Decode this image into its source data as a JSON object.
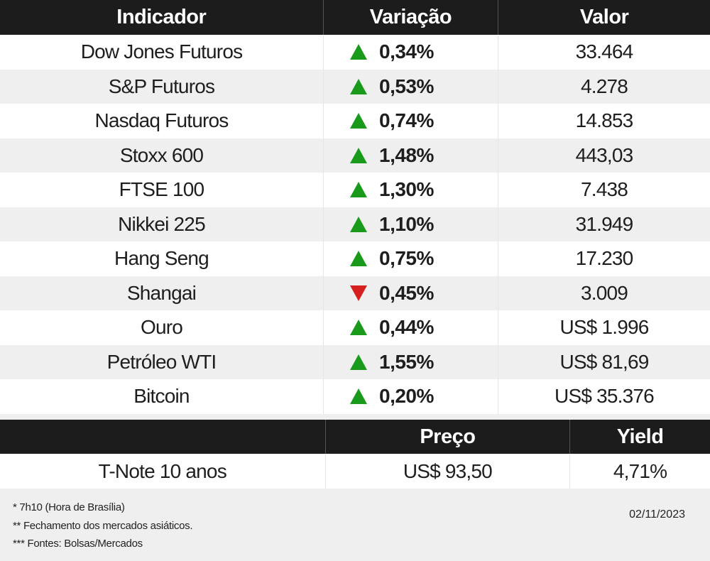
{
  "main_table": {
    "headers": {
      "indicador": "Indicador",
      "variacao": "Variação",
      "valor": "Valor"
    },
    "rows": [
      {
        "indicador": "Dow Jones Futuros",
        "direction": "up",
        "variacao": "0,34%",
        "valor": "33.464"
      },
      {
        "indicador": "S&P Futuros",
        "direction": "up",
        "variacao": "0,53%",
        "valor": "4.278"
      },
      {
        "indicador": "Nasdaq Futuros",
        "direction": "up",
        "variacao": "0,74%",
        "valor": "14.853"
      },
      {
        "indicador": "Stoxx 600",
        "direction": "up",
        "variacao": "1,48%",
        "valor": "443,03"
      },
      {
        "indicador": "FTSE 100",
        "direction": "up",
        "variacao": "1,30%",
        "valor": "7.438"
      },
      {
        "indicador": "Nikkei 225",
        "direction": "up",
        "variacao": "1,10%",
        "valor": "31.949"
      },
      {
        "indicador": "Hang Seng",
        "direction": "up",
        "variacao": "0,75%",
        "valor": "17.230"
      },
      {
        "indicador": "Shangai",
        "direction": "down",
        "variacao": "0,45%",
        "valor": "3.009"
      },
      {
        "indicador": "Ouro",
        "direction": "up",
        "variacao": "0,44%",
        "valor": "US$ 1.996"
      },
      {
        "indicador": "Petróleo WTI",
        "direction": "up",
        "variacao": "1,55%",
        "valor": "US$ 81,69"
      },
      {
        "indicador": "Bitcoin",
        "direction": "up",
        "variacao": "0,20%",
        "valor": "US$ 35.376"
      }
    ]
  },
  "tnote_table": {
    "headers": {
      "blank": "",
      "preco": "Preço",
      "yield": "Yield"
    },
    "row": {
      "name": "T-Note 10 anos",
      "preco": "US$ 93,50",
      "yield": "4,71%"
    }
  },
  "footer": {
    "notes": [
      "* 7h10 (Hora de Brasília)",
      "** Fechamento dos mercados asiáticos.",
      "*** Fontes: Bolsas/Mercados"
    ],
    "date": "02/11/2023"
  },
  "colors": {
    "header_bg": "#1c1c1c",
    "up": "#1a9a1a",
    "down": "#d62020",
    "stripe": "#efefef"
  },
  "icons": {
    "up": "triangle-up-icon",
    "down": "triangle-down-icon"
  }
}
